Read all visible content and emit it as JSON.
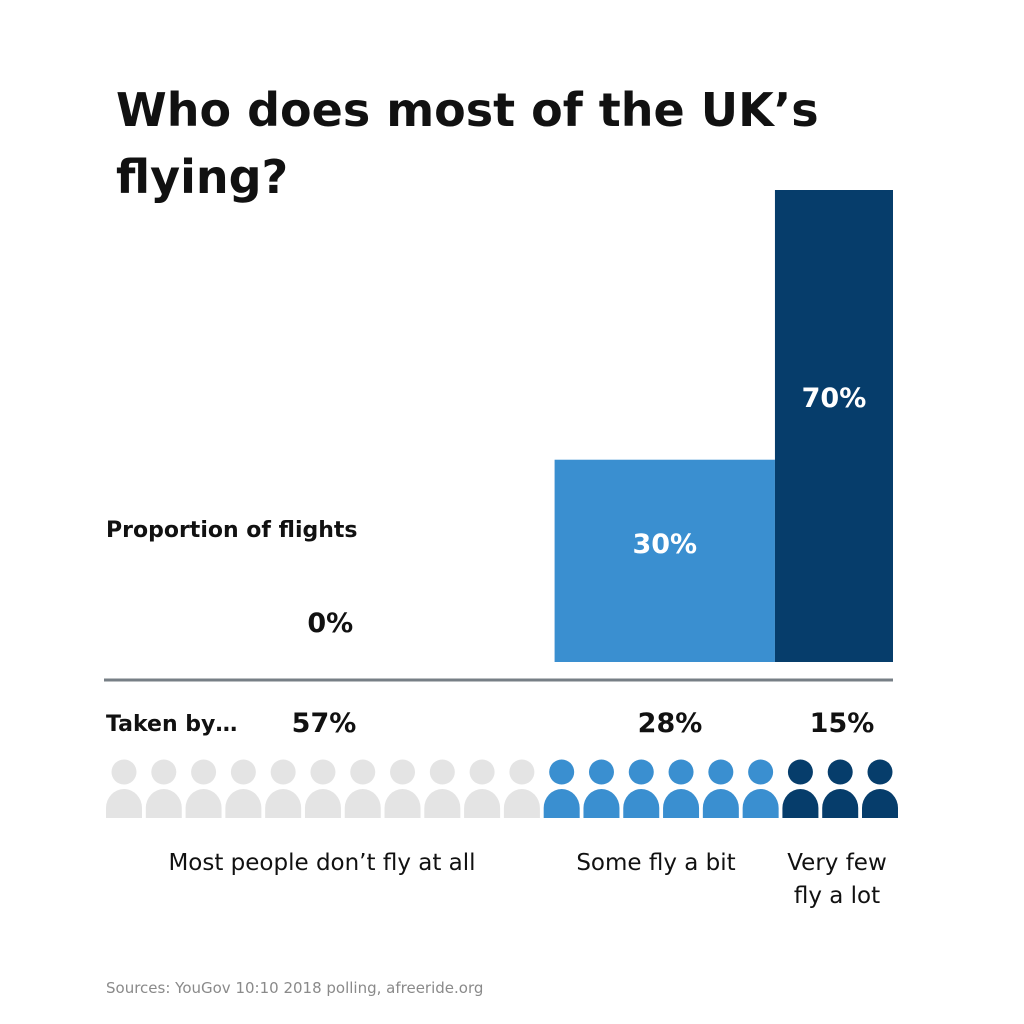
{
  "chart_data": {
    "type": "bar",
    "title_lines": [
      "Who does most of the UK’s",
      "flying?"
    ],
    "flights_label": "Proportion of flights",
    "taken_by_label": "Taken by…",
    "categories": [
      "Most people don’t fly at all",
      "Some fly a bit",
      "Very few fly a lot"
    ],
    "caption_lines": [
      [
        "Most people don’t fly at all"
      ],
      [
        "Some fly a bit"
      ],
      [
        "Very few",
        "fly a lot"
      ]
    ],
    "flight_share_labels": [
      "0%",
      "30%",
      "70%"
    ],
    "flight_share": [
      0,
      30,
      70
    ],
    "people_share_labels": [
      "57%",
      "28%",
      "15%"
    ],
    "people_share": [
      57,
      28,
      15
    ],
    "icon_counts": [
      11,
      6,
      3
    ],
    "colors": [
      "#e4e4e4",
      "#3a8fd0",
      "#063d6b"
    ],
    "value_label_colors": [
      "#111111",
      "#ffffff",
      "#ffffff"
    ],
    "axis_color": "#777f86",
    "ylim": [
      0,
      70
    ],
    "source": "Sources: YouGov 10:10 2018 polling, afreeride.org"
  }
}
